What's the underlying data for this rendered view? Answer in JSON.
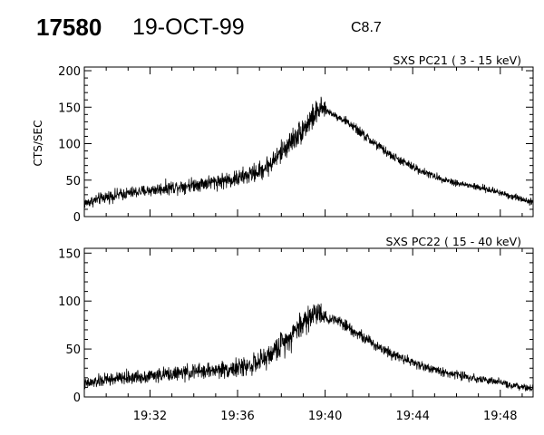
{
  "header": {
    "event_number": "17580",
    "date": "19-OCT-99",
    "flare_class": "C8.7"
  },
  "chart_data": [
    {
      "type": "line",
      "title": "SXS PC21  (  3 - 15 keV)",
      "ylabel": "CTS/SEC",
      "xlabel": "",
      "x_unit": "minutes after 19:00",
      "xlim": [
        29,
        49.5
      ],
      "ylim": [
        0,
        205
      ],
      "yticks": [
        0,
        50,
        100,
        150,
        200
      ],
      "series": [
        {
          "x": [
            29.0,
            30.0,
            31.0,
            32.0,
            33.0,
            34.0,
            35.0,
            36.0,
            37.0,
            37.5,
            38.0,
            38.5,
            39.0,
            39.4,
            39.7,
            39.85,
            40.1,
            40.5,
            41.0,
            41.5,
            42.0,
            43.0,
            44.0,
            45.0,
            46.0,
            47.0,
            48.0,
            48.5,
            49.0,
            49.5
          ],
          "y": [
            18,
            27,
            32,
            36,
            40,
            44,
            48,
            52,
            62,
            72,
            88,
            105,
            120,
            135,
            145,
            148,
            145,
            138,
            130,
            118,
            106,
            84,
            68,
            55,
            46,
            40,
            33,
            28,
            24,
            20
          ],
          "noise": [
            6,
            7,
            7,
            7,
            8,
            8,
            9,
            10,
            11,
            12,
            13,
            14,
            15,
            15,
            14,
            12,
            4,
            4,
            5,
            6,
            6,
            5,
            5,
            4,
            4,
            4,
            4,
            4,
            4,
            4
          ]
        }
      ]
    },
    {
      "type": "line",
      "title": "SXS PC22  ( 15 - 40 keV)",
      "ylabel": "",
      "xlabel": "",
      "x_unit": "minutes after 19:00",
      "xlim": [
        29,
        49.5
      ],
      "ylim": [
        0,
        155
      ],
      "yticks": [
        0,
        50,
        100,
        150
      ],
      "xticks": [
        32,
        36,
        40,
        44,
        48
      ],
      "xticklabels": [
        "19:32",
        "19:36",
        "19:40",
        "19:44",
        "19:48"
      ],
      "series": [
        {
          "x": [
            29.0,
            30.0,
            31.0,
            32.0,
            33.0,
            34.0,
            35.0,
            36.0,
            37.0,
            37.5,
            38.0,
            38.5,
            39.0,
            39.4,
            39.7,
            39.85,
            40.1,
            40.5,
            41.0,
            41.5,
            42.0,
            43.0,
            44.0,
            45.0,
            46.0,
            47.0,
            48.0,
            48.5,
            49.0,
            49.5
          ],
          "y": [
            13,
            18,
            20,
            22,
            24,
            26,
            28,
            30,
            36,
            44,
            55,
            66,
            78,
            85,
            90,
            88,
            80,
            82,
            74,
            66,
            58,
            46,
            36,
            28,
            23,
            19,
            15,
            12,
            10,
            9
          ],
          "noise": [
            5,
            6,
            6,
            6,
            6,
            7,
            7,
            8,
            9,
            10,
            11,
            12,
            13,
            13,
            12,
            10,
            4,
            5,
            5,
            5,
            5,
            5,
            4,
            4,
            4,
            4,
            3,
            3,
            3,
            3
          ]
        }
      ]
    }
  ]
}
